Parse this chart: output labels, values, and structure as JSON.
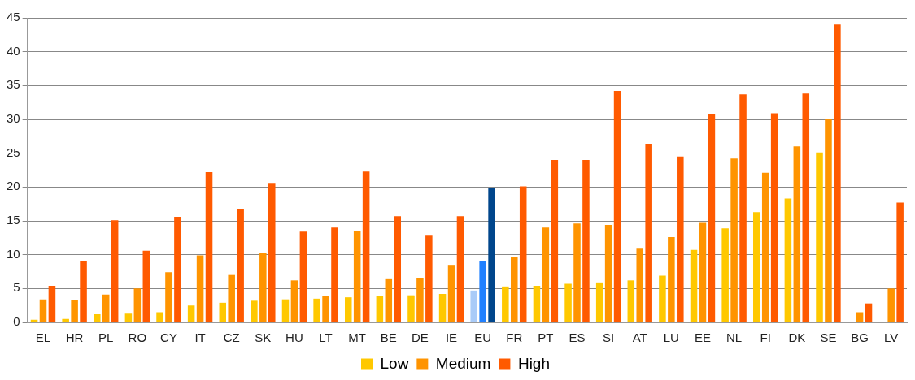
{
  "chart_data": {
    "type": "bar",
    "categories": [
      "EL",
      "HR",
      "PL",
      "RO",
      "CY",
      "IT",
      "CZ",
      "SK",
      "HU",
      "LT",
      "MT",
      "BE",
      "DE",
      "IE",
      "EU",
      "FR",
      "PT",
      "ES",
      "SI",
      "AT",
      "LU",
      "EE",
      "NL",
      "FI",
      "DK",
      "SE",
      "BG",
      "LV"
    ],
    "series": [
      {
        "name": "Low",
        "color": "#ffc800",
        "colors": [
          "#ffc800",
          "#ffc800",
          "#ffc800",
          "#ffc800",
          "#ffc800",
          "#ffc800",
          "#ffc800",
          "#ffc800",
          "#ffc800",
          "#ffc800",
          "#ffc800",
          "#ffc800",
          "#ffc800",
          "#ffc800",
          "#a9cbf8",
          "#ffc800",
          "#ffc800",
          "#ffc800",
          "#ffc800",
          "#ffc800",
          "#ffc800",
          "#ffc800",
          "#ffc800",
          "#ffc800",
          "#ffc800",
          "#ffc800",
          "#ffc800",
          "#ffc800"
        ],
        "values": [
          0.4,
          0.5,
          1.2,
          1.3,
          1.5,
          2.5,
          2.9,
          3.2,
          3.4,
          3.5,
          3.7,
          3.9,
          4.0,
          4.2,
          4.7,
          5.3,
          5.4,
          5.7,
          5.9,
          6.2,
          6.9,
          10.7,
          13.9,
          16.3,
          18.3,
          25.1,
          null,
          null
        ]
      },
      {
        "name": "Medium",
        "color": "#ff9400",
        "colors": [
          "#ff9400",
          "#ff9400",
          "#ff9400",
          "#ff9400",
          "#ff9400",
          "#ff9400",
          "#ff9400",
          "#ff9400",
          "#ff9400",
          "#ff9400",
          "#ff9400",
          "#ff9400",
          "#ff9400",
          "#ff9400",
          "#2080ff",
          "#ff9400",
          "#ff9400",
          "#ff9400",
          "#ff9400",
          "#ff9400",
          "#ff9400",
          "#ff9400",
          "#ff9400",
          "#ff9400",
          "#ff9400",
          "#ff9400",
          "#ff9400",
          "#ff9400"
        ],
        "values": [
          3.4,
          3.3,
          4.1,
          5.0,
          7.4,
          9.9,
          7.0,
          10.2,
          6.2,
          3.9,
          13.5,
          6.5,
          6.6,
          8.5,
          9.0,
          9.7,
          14.0,
          14.6,
          14.4,
          10.9,
          12.6,
          14.7,
          24.2,
          22.1,
          26.0,
          30.0,
          1.5,
          5.0
        ]
      },
      {
        "name": "High",
        "color": "#ff5a00",
        "colors": [
          "#ff5a00",
          "#ff5a00",
          "#ff5a00",
          "#ff5a00",
          "#ff5a00",
          "#ff5a00",
          "#ff5a00",
          "#ff5a00",
          "#ff5a00",
          "#ff5a00",
          "#ff5a00",
          "#ff5a00",
          "#ff5a00",
          "#ff5a00",
          "#00468c",
          "#ff5a00",
          "#ff5a00",
          "#ff5a00",
          "#ff5a00",
          "#ff5a00",
          "#ff5a00",
          "#ff5a00",
          "#ff5a00",
          "#ff5a00",
          "#ff5a00",
          "#ff5a00",
          "#ff5a00",
          "#ff5a00"
        ],
        "values": [
          5.4,
          9.0,
          15.1,
          10.6,
          15.6,
          22.2,
          16.8,
          20.6,
          13.4,
          14.0,
          22.3,
          15.7,
          12.8,
          15.7,
          19.9,
          20.1,
          24.0,
          24.0,
          34.2,
          26.4,
          24.5,
          30.8,
          33.7,
          30.9,
          33.8,
          44.0,
          2.8,
          17.7
        ]
      }
    ],
    "ylim": [
      0,
      45
    ],
    "yticks": [
      0,
      5,
      10,
      15,
      20,
      25,
      30,
      35,
      40,
      45
    ],
    "grid": "y",
    "legend": "bottom"
  }
}
